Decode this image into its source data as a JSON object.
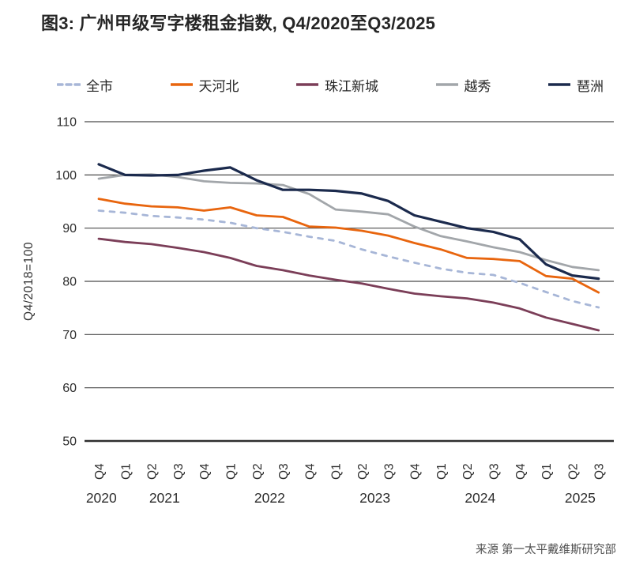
{
  "title": "图3: 广州甲级写字楼租金指数, Q4/2020至Q3/2025",
  "source": "来源 第一太平戴维斯研究部",
  "chart_data": {
    "type": "line",
    "title": "图3: 广州甲级写字楼租金指数, Q4/2020至Q3/2025",
    "ylabel": "Q4/2018=100",
    "ylim": [
      50,
      110
    ],
    "yticks": [
      50,
      60,
      70,
      80,
      90,
      100,
      110
    ],
    "grid": true,
    "legend_position": "top",
    "x_labels": [
      "Q4",
      "Q1",
      "Q2",
      "Q3",
      "Q4",
      "Q1",
      "Q2",
      "Q3",
      "Q4",
      "Q1",
      "Q2",
      "Q3",
      "Q4",
      "Q1",
      "Q2",
      "Q3",
      "Q4",
      "Q1",
      "Q2",
      "Q3"
    ],
    "years": [
      {
        "label": "2020",
        "pos": 0.1
      },
      {
        "label": "2021",
        "pos": 2.5
      },
      {
        "label": "2022",
        "pos": 6.5
      },
      {
        "label": "2023",
        "pos": 10.5
      },
      {
        "label": "2024",
        "pos": 14.5
      },
      {
        "label": "2025",
        "pos": 18.3
      }
    ],
    "series": [
      {
        "id": "citywide",
        "name": "全市",
        "color": "#a7b6d7",
        "dashed": true,
        "values": [
          93.3,
          92.9,
          92.3,
          92.0,
          91.6,
          91.0,
          90.0,
          89.3,
          88.4,
          87.6,
          86.0,
          84.7,
          83.5,
          82.4,
          81.6,
          81.2,
          79.7,
          78.0,
          76.3,
          75.1
        ]
      },
      {
        "id": "tianhebei",
        "name": "天河北",
        "color": "#e8650e",
        "dashed": false,
        "values": [
          95.5,
          94.6,
          94.1,
          93.9,
          93.3,
          93.9,
          92.4,
          92.1,
          90.3,
          90.1,
          89.5,
          88.6,
          87.2,
          86.0,
          84.4,
          84.2,
          83.8,
          81.0,
          80.5,
          77.9
        ]
      },
      {
        "id": "zhujiang-new-town",
        "name": "珠江新城",
        "color": "#7b3e58",
        "dashed": false,
        "values": [
          88.0,
          87.4,
          87.0,
          86.3,
          85.5,
          84.4,
          82.9,
          82.1,
          81.1,
          80.3,
          79.6,
          78.6,
          77.7,
          77.2,
          76.8,
          76.0,
          74.9,
          73.2,
          72.0,
          70.8
        ]
      },
      {
        "id": "yuexiu",
        "name": "越秀",
        "color": "#a2a6aa",
        "dashed": false,
        "values": [
          99.3,
          100.0,
          100.1,
          99.6,
          98.8,
          98.5,
          98.4,
          98.1,
          96.4,
          93.5,
          93.1,
          92.6,
          90.3,
          88.5,
          87.5,
          86.4,
          85.5,
          84.0,
          82.7,
          82.1
        ]
      },
      {
        "id": "pazhou",
        "name": "琶洲",
        "color": "#1b2a4d",
        "dashed": false,
        "values": [
          102.0,
          100.0,
          99.9,
          100.0,
          100.8,
          101.4,
          99.0,
          97.2,
          97.2,
          97.0,
          96.5,
          95.1,
          92.4,
          91.2,
          90.0,
          89.3,
          87.9,
          83.2,
          81.1,
          80.5
        ]
      }
    ]
  }
}
